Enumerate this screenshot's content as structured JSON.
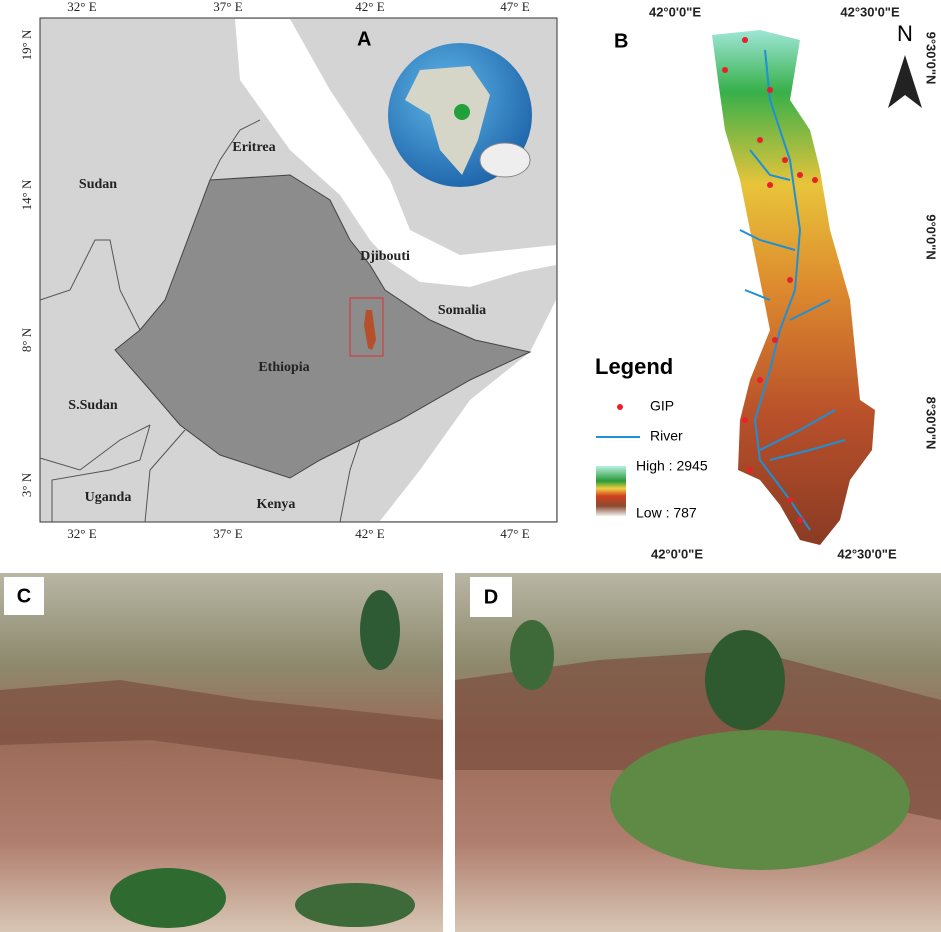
{
  "map_a": {
    "label": "A",
    "top_ticks": [
      "32° E",
      "37° E",
      "42° E",
      "47° E"
    ],
    "bottom_ticks": [
      "32° E",
      "37° E",
      "42° E",
      "47° E"
    ],
    "left_ticks": [
      "19° N",
      "14° N",
      "8° N",
      "3° N"
    ],
    "countries": [
      "Sudan",
      "Eritrea",
      "Djibouti",
      "Somalia",
      "Ethiopia",
      "S.Sudan",
      "Uganda",
      "Kenya"
    ]
  },
  "map_b": {
    "label": "B",
    "top_ticks": [
      "42°0'0\"E",
      "42°30'0\"E"
    ],
    "bottom_ticks": [
      "42°0'0\"E",
      "42°30'0\"E"
    ],
    "right_ticks": [
      "9°30'0\"N",
      "9°0'0\"N",
      "8°30'0\"N"
    ],
    "north": "N",
    "legend": {
      "title": "Legend",
      "items": [
        "GIP",
        "River"
      ],
      "high": "High : 2945",
      "low": "Low : 787"
    }
  },
  "photos": [
    {
      "label": "C"
    },
    {
      "label": "D"
    }
  ]
}
